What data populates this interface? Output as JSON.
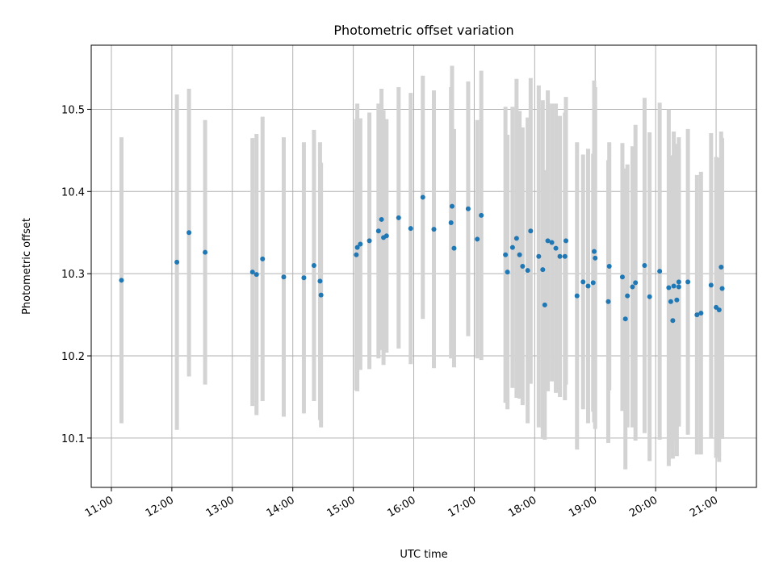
{
  "chart_data": {
    "type": "scatter",
    "title": "Photometric offset variation",
    "xlabel": "UTC time",
    "ylabel": "Photometric offset",
    "xlim": [
      "10:40",
      "21:40"
    ],
    "ylim": [
      10.04,
      10.578
    ],
    "grid": true,
    "x_ticks": [
      "11:00",
      "12:00",
      "13:00",
      "14:00",
      "15:00",
      "16:00",
      "17:00",
      "18:00",
      "19:00",
      "20:00",
      "21:00"
    ],
    "y_ticks": [
      10.1,
      10.2,
      10.3,
      10.4,
      10.5
    ],
    "y_tick_labels": [
      "10.1",
      "10.2",
      "10.3",
      "10.4",
      "10.5"
    ],
    "colors": {
      "points": "#1f77b4",
      "error_bars": "#d3d3d3"
    },
    "series": [
      {
        "x": [
          "11:10",
          "12:05",
          "12:17",
          "12:33",
          "13:20",
          "13:24",
          "13:30",
          "13:51",
          "14:11",
          "14:21",
          "14:27",
          "14:28",
          "15:03",
          "15:04",
          "15:07",
          "15:16",
          "15:25",
          "15:28",
          "15:30",
          "15:33",
          "15:45",
          "15:57",
          "16:09",
          "16:20",
          "16:37",
          "16:38",
          "16:40",
          "16:54",
          "17:03",
          "17:07",
          "17:31",
          "17:33",
          "17:38",
          "17:42",
          "17:45",
          "17:48",
          "17:53",
          "17:56",
          "18:04",
          "18:08",
          "18:10",
          "18:13",
          "18:17",
          "18:21",
          "18:25",
          "18:30",
          "18:31",
          "18:42",
          "18:48",
          "18:53",
          "18:58",
          "18:59",
          "19:00",
          "19:13",
          "19:14",
          "19:27",
          "19:30",
          "19:32",
          "19:37",
          "19:40",
          "19:49",
          "19:54",
          "20:04",
          "20:13",
          "20:15",
          "20:17",
          "20:18",
          "20:21",
          "20:23",
          "20:23",
          "20:32",
          "20:41",
          "20:45",
          "20:55",
          "21:00",
          "21:03",
          "21:05",
          "21:06"
        ],
        "y": [
          10.292,
          10.314,
          10.35,
          10.326,
          10.302,
          10.299,
          10.318,
          10.296,
          10.295,
          10.31,
          10.291,
          10.274,
          10.323,
          10.332,
          10.336,
          10.34,
          10.352,
          10.366,
          10.344,
          10.346,
          10.368,
          10.355,
          10.393,
          10.354,
          10.362,
          10.382,
          10.331,
          10.379,
          10.342,
          10.371,
          10.323,
          10.302,
          10.332,
          10.343,
          10.323,
          10.309,
          10.304,
          10.352,
          10.321,
          10.305,
          10.262,
          10.34,
          10.338,
          10.331,
          10.321,
          10.321,
          10.34,
          10.273,
          10.29,
          10.285,
          10.289,
          10.327,
          10.319,
          10.266,
          10.309,
          10.296,
          10.245,
          10.273,
          10.284,
          10.289,
          10.31,
          10.272,
          10.303,
          10.283,
          10.266,
          10.243,
          10.285,
          10.268,
          10.284,
          10.29,
          10.29,
          10.25,
          10.252,
          10.286,
          10.259,
          10.256,
          10.308,
          10.282
        ],
        "yerr": [
          0.174,
          0.204,
          0.175,
          0.161,
          0.163,
          0.171,
          0.173,
          0.17,
          0.165,
          0.165,
          0.169,
          0.161,
          0.165,
          0.175,
          0.153,
          0.156,
          0.155,
          0.159,
          0.155,
          0.142,
          0.159,
          0.165,
          0.148,
          0.169,
          0.165,
          0.171,
          0.145,
          0.155,
          0.145,
          0.176,
          0.18,
          0.167,
          0.171,
          0.194,
          0.175,
          0.169,
          0.186,
          0.186,
          0.208,
          0.206,
          0.164,
          0.183,
          0.169,
          0.176,
          0.171,
          0.175,
          0.175,
          0.187,
          0.155,
          0.167,
          0.157,
          0.208,
          0.208,
          0.172,
          0.151,
          0.163,
          0.183,
          0.16,
          0.171,
          0.192,
          0.204,
          0.2,
          0.205,
          0.217,
          0.178,
          0.168,
          0.188,
          0.19,
          0.168,
          0.176,
          0.186,
          0.17,
          0.172,
          0.185,
          0.183,
          0.185,
          0.165,
          0.183
        ]
      }
    ]
  }
}
